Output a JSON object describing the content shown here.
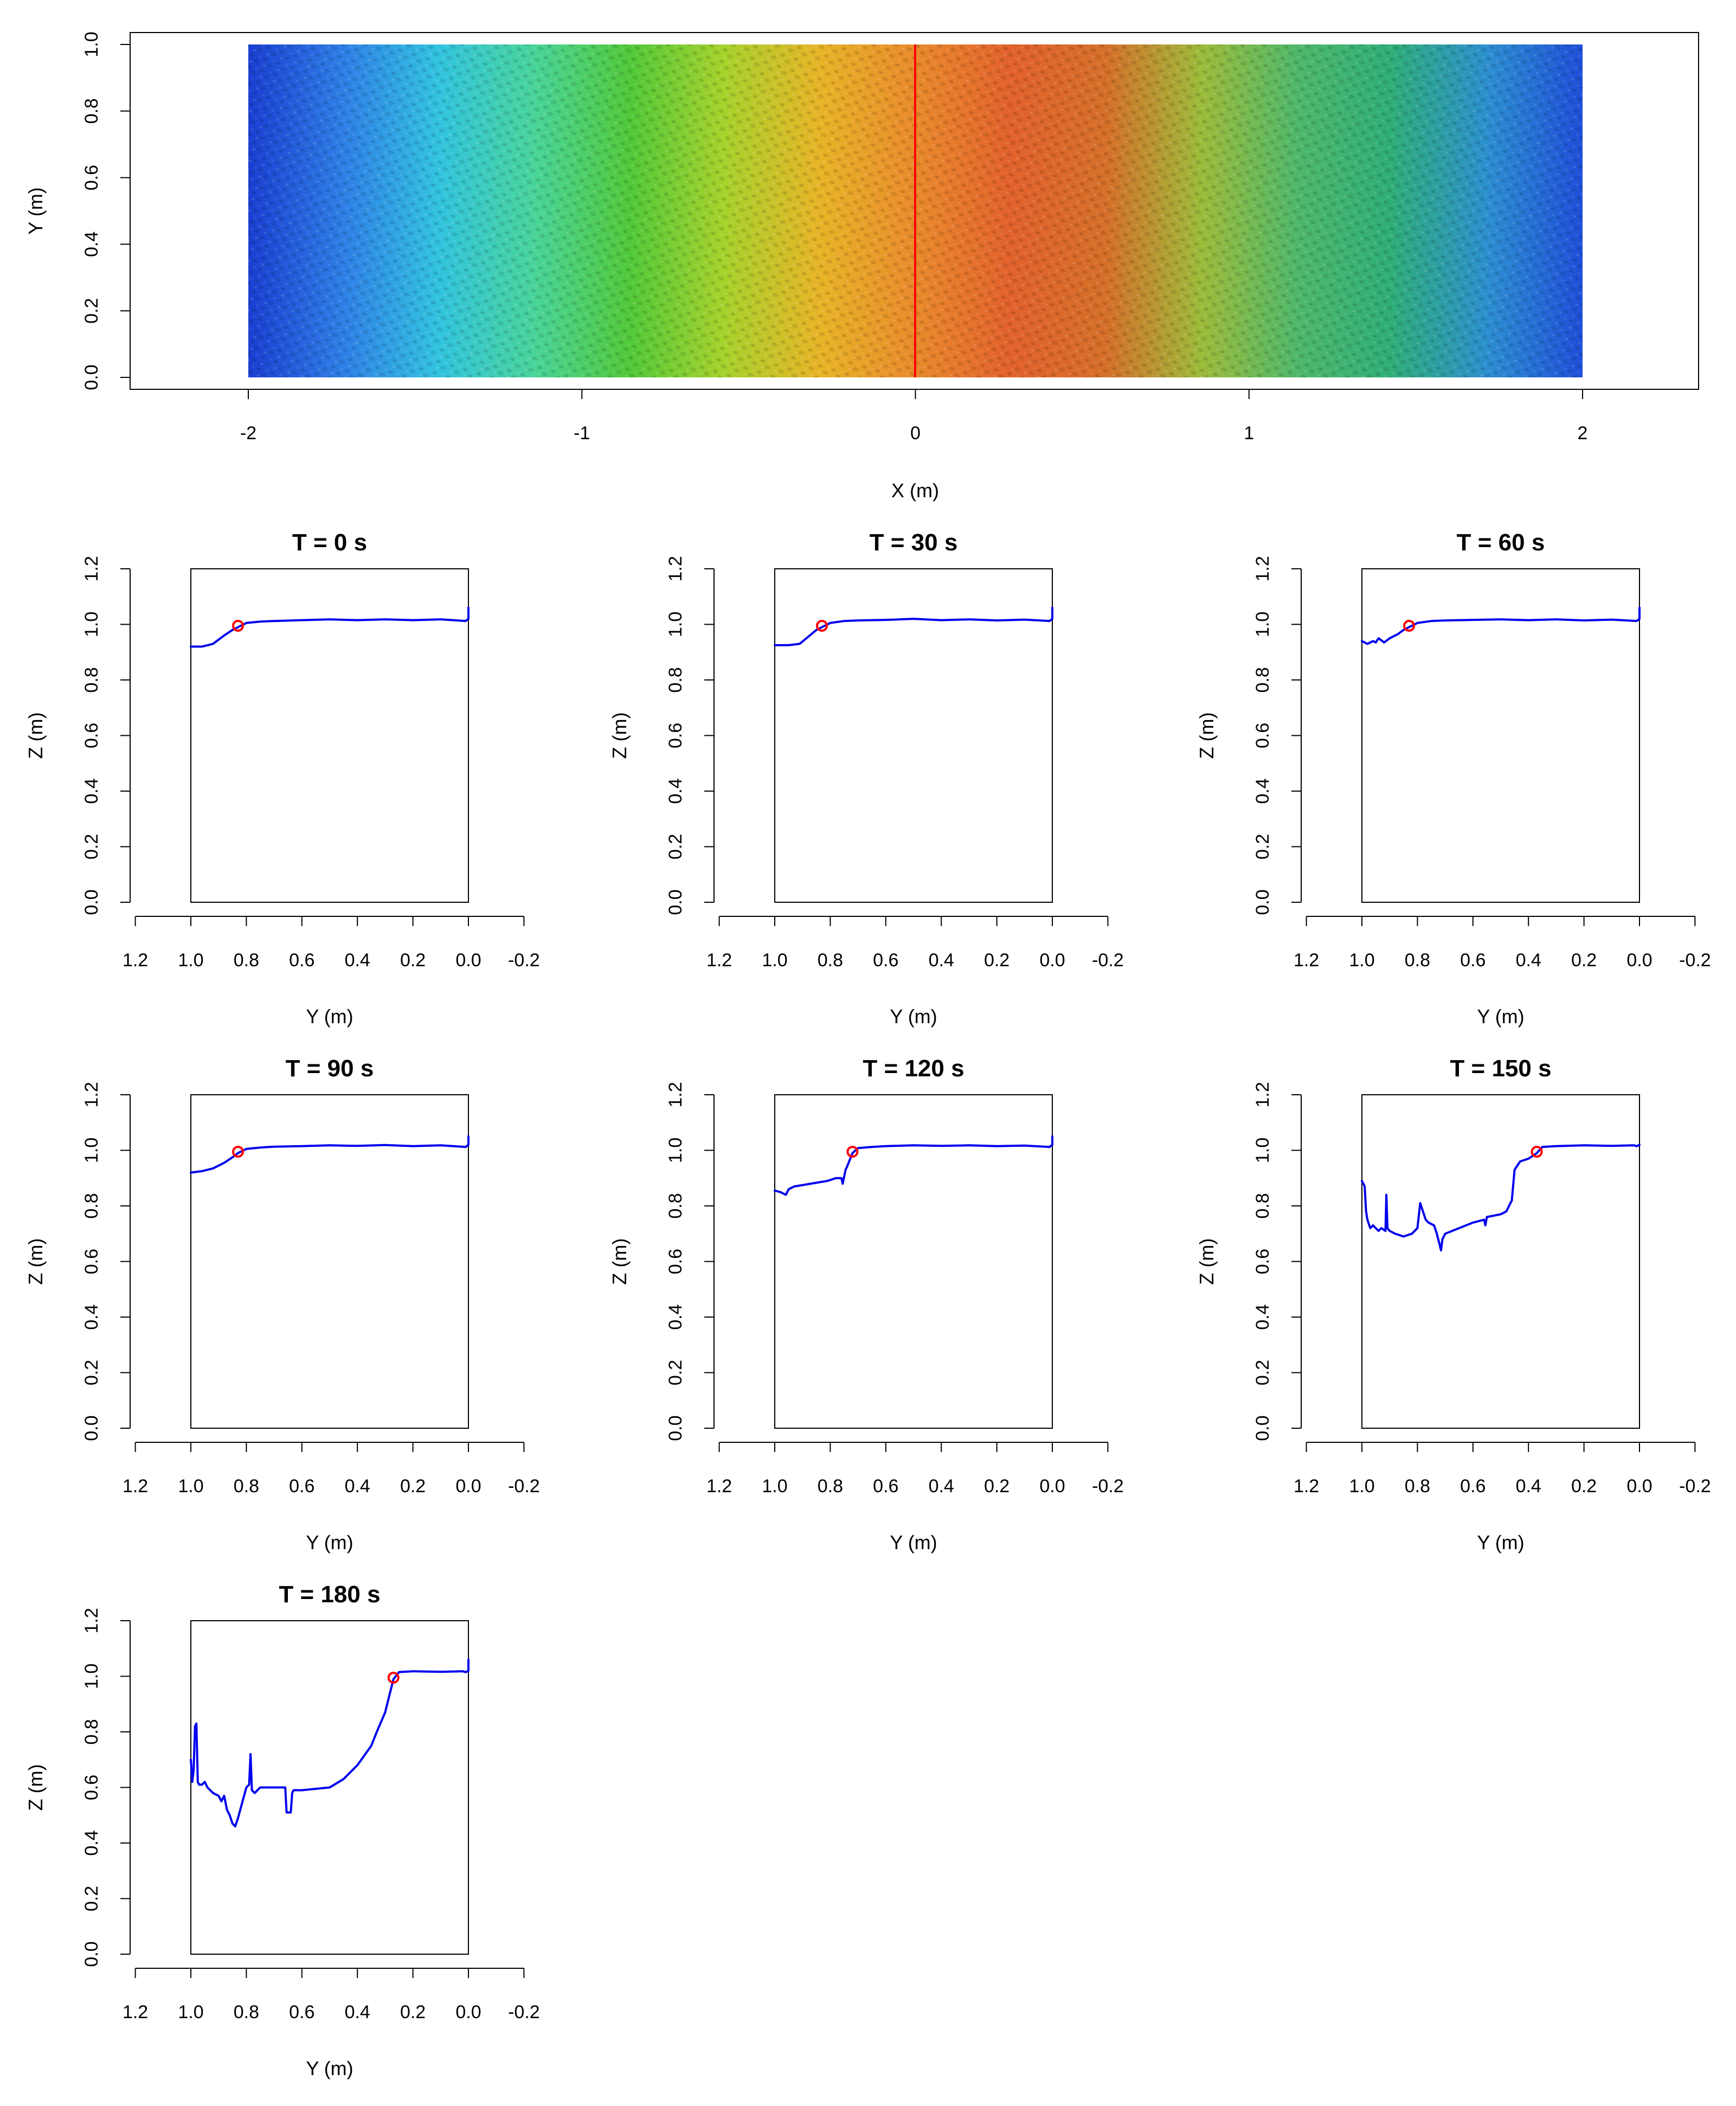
{
  "colors": {
    "profile_line": "#0000ee",
    "breach_marker": "#ff0000",
    "centerline": "#ff0000",
    "axis": "#000000",
    "dem_ramp": [
      "#1a3fd1",
      "#2f7fe6",
      "#32c4df",
      "#49d49a",
      "#52c93a",
      "#a7d22c",
      "#e8b427",
      "#e98a2c",
      "#e2622c",
      "#d5702a",
      "#9dbb3a",
      "#4fb86a",
      "#2fae78",
      "#2d8fd0",
      "#1f4fd8"
    ]
  },
  "chart_data": [
    {
      "type": "heatmap",
      "title": "",
      "xlabel": "X (m)",
      "ylabel": "Y (m)",
      "xlim": [
        -2.35,
        2.35
      ],
      "ylim": [
        -0.02,
        1.0
      ],
      "xticks": [
        -2,
        -1,
        0,
        1,
        2
      ],
      "yticks": [
        0.0,
        0.2,
        0.4,
        0.6,
        0.8,
        1.0
      ],
      "xtick_labels": [
        "-2",
        "-1",
        "0",
        "1",
        "2"
      ],
      "ytick_labels": [
        "0.0",
        "0.2",
        "0.4",
        "0.6",
        "0.8",
        "1.0"
      ],
      "extent": {
        "x": [
          -2,
          2
        ],
        "y": [
          0,
          1
        ]
      },
      "centerline_x": 0,
      "grid": false,
      "colorbar": false
    },
    {
      "type": "line",
      "title": "T = 0 s",
      "xlabel": "Y (m)",
      "ylabel": "Z (m)",
      "xlim": [
        1.2,
        -0.2
      ],
      "ylim": [
        0.0,
        1.2
      ],
      "xticks": [
        1.2,
        1.0,
        0.8,
        0.6,
        0.4,
        0.2,
        0.0,
        -0.2
      ],
      "yticks": [
        0.0,
        0.2,
        0.4,
        0.6,
        0.8,
        1.0,
        1.2
      ],
      "xtick_labels": [
        "1.2",
        "1.0",
        "0.8",
        "0.6",
        "0.4",
        "0.2",
        "0.0",
        "-0.2"
      ],
      "ytick_labels": [
        "0.0",
        "0.2",
        "0.4",
        "0.6",
        "0.8",
        "1.0",
        "1.2"
      ],
      "x": [
        1.0,
        0.96,
        0.92,
        0.88,
        0.85,
        0.83,
        0.8,
        0.75,
        0.7,
        0.6,
        0.5,
        0.4,
        0.3,
        0.2,
        0.1,
        0.01,
        0.0,
        0.0
      ],
      "y": [
        0.92,
        0.92,
        0.93,
        0.96,
        0.98,
        0.99,
        1.005,
        1.01,
        1.012,
        1.015,
        1.018,
        1.015,
        1.018,
        1.015,
        1.018,
        1.012,
        1.02,
        1.06
      ],
      "marker": {
        "x": 0.83,
        "y": 0.995
      },
      "grid": false
    },
    {
      "type": "line",
      "title": "T = 30 s",
      "xlabel": "Y (m)",
      "ylabel": "Z (m)",
      "xlim": [
        1.2,
        -0.2
      ],
      "ylim": [
        0.0,
        1.2
      ],
      "xticks": [
        1.2,
        1.0,
        0.8,
        0.6,
        0.4,
        0.2,
        0.0,
        -0.2
      ],
      "yticks": [
        0.0,
        0.2,
        0.4,
        0.6,
        0.8,
        1.0,
        1.2
      ],
      "xtick_labels": [
        "1.2",
        "1.0",
        "0.8",
        "0.6",
        "0.4",
        "0.2",
        "0.0",
        "-0.2"
      ],
      "ytick_labels": [
        "0.0",
        "0.2",
        "0.4",
        "0.6",
        "0.8",
        "1.0",
        "1.2"
      ],
      "x": [
        1.0,
        0.95,
        0.91,
        0.88,
        0.85,
        0.83,
        0.8,
        0.75,
        0.7,
        0.6,
        0.5,
        0.4,
        0.3,
        0.2,
        0.1,
        0.01,
        0.0,
        0.0
      ],
      "y": [
        0.925,
        0.925,
        0.93,
        0.955,
        0.98,
        0.99,
        1.005,
        1.012,
        1.014,
        1.016,
        1.02,
        1.015,
        1.018,
        1.014,
        1.017,
        1.012,
        1.02,
        1.06
      ],
      "marker": {
        "x": 0.83,
        "y": 0.995
      },
      "grid": false
    },
    {
      "type": "line",
      "title": "T = 60 s",
      "xlabel": "Y (m)",
      "ylabel": "Z (m)",
      "xlim": [
        1.2,
        -0.2
      ],
      "ylim": [
        0.0,
        1.2
      ],
      "xticks": [
        1.2,
        1.0,
        0.8,
        0.6,
        0.4,
        0.2,
        0.0,
        -0.2
      ],
      "yticks": [
        0.0,
        0.2,
        0.4,
        0.6,
        0.8,
        1.0,
        1.2
      ],
      "xtick_labels": [
        "1.2",
        "1.0",
        "0.8",
        "0.6",
        "0.4",
        "0.2",
        "0.0",
        "-0.2"
      ],
      "ytick_labels": [
        "0.0",
        "0.2",
        "0.4",
        "0.6",
        "0.8",
        "1.0",
        "1.2"
      ],
      "x": [
        1.0,
        0.98,
        0.96,
        0.95,
        0.94,
        0.92,
        0.9,
        0.87,
        0.85,
        0.83,
        0.8,
        0.75,
        0.7,
        0.6,
        0.5,
        0.4,
        0.3,
        0.2,
        0.1,
        0.01,
        0.0,
        0.0
      ],
      "y": [
        0.94,
        0.93,
        0.94,
        0.935,
        0.95,
        0.935,
        0.95,
        0.965,
        0.98,
        0.99,
        1.005,
        1.012,
        1.014,
        1.016,
        1.018,
        1.015,
        1.018,
        1.014,
        1.017,
        1.012,
        1.02,
        1.06
      ],
      "marker": {
        "x": 0.83,
        "y": 0.995
      },
      "grid": false
    },
    {
      "type": "line",
      "title": "T = 90 s",
      "xlabel": "Y (m)",
      "ylabel": "Z (m)",
      "xlim": [
        1.2,
        -0.2
      ],
      "ylim": [
        0.0,
        1.2
      ],
      "xticks": [
        1.2,
        1.0,
        0.8,
        0.6,
        0.4,
        0.2,
        0.0,
        -0.2
      ],
      "yticks": [
        0.0,
        0.2,
        0.4,
        0.6,
        0.8,
        1.0,
        1.2
      ],
      "xtick_labels": [
        "1.2",
        "1.0",
        "0.8",
        "0.6",
        "0.4",
        "0.2",
        "0.0",
        "-0.2"
      ],
      "ytick_labels": [
        "0.0",
        "0.2",
        "0.4",
        "0.6",
        "0.8",
        "1.0",
        "1.2"
      ],
      "x": [
        1.0,
        0.96,
        0.92,
        0.88,
        0.85,
        0.83,
        0.8,
        0.75,
        0.7,
        0.6,
        0.5,
        0.4,
        0.3,
        0.2,
        0.1,
        0.01,
        0.0,
        0.0
      ],
      "y": [
        0.92,
        0.925,
        0.935,
        0.955,
        0.975,
        0.99,
        1.005,
        1.01,
        1.013,
        1.015,
        1.018,
        1.016,
        1.019,
        1.015,
        1.018,
        1.012,
        1.02,
        1.05
      ],
      "marker": {
        "x": 0.83,
        "y": 0.995
      },
      "grid": false
    },
    {
      "type": "line",
      "title": "T = 120 s",
      "xlabel": "Y (m)",
      "ylabel": "Z (m)",
      "xlim": [
        1.2,
        -0.2
      ],
      "ylim": [
        0.0,
        1.2
      ],
      "xticks": [
        1.2,
        1.0,
        0.8,
        0.6,
        0.4,
        0.2,
        0.0,
        -0.2
      ],
      "yticks": [
        0.0,
        0.2,
        0.4,
        0.6,
        0.8,
        1.0,
        1.2
      ],
      "xtick_labels": [
        "1.2",
        "1.0",
        "0.8",
        "0.6",
        "0.4",
        "0.2",
        "0.0",
        "-0.2"
      ],
      "ytick_labels": [
        "0.0",
        "0.2",
        "0.4",
        "0.6",
        "0.8",
        "1.0",
        "1.2"
      ],
      "x": [
        1.0,
        0.98,
        0.96,
        0.95,
        0.93,
        0.9,
        0.87,
        0.84,
        0.81,
        0.78,
        0.76,
        0.755,
        0.745,
        0.74,
        0.72,
        0.7,
        0.65,
        0.6,
        0.5,
        0.4,
        0.3,
        0.2,
        0.1,
        0.01,
        0.0,
        0.0
      ],
      "y": [
        0.855,
        0.85,
        0.84,
        0.86,
        0.87,
        0.875,
        0.88,
        0.885,
        0.89,
        0.9,
        0.9,
        0.88,
        0.93,
        0.94,
        0.99,
        1.008,
        1.012,
        1.015,
        1.018,
        1.016,
        1.018,
        1.015,
        1.017,
        1.012,
        1.02,
        1.05
      ],
      "marker": {
        "x": 0.72,
        "y": 0.995
      },
      "grid": false
    },
    {
      "type": "line",
      "title": "T = 150 s",
      "xlabel": "Y (m)",
      "ylabel": "Z (m)",
      "xlim": [
        1.2,
        -0.2
      ],
      "ylim": [
        0.0,
        1.2
      ],
      "xticks": [
        1.2,
        1.0,
        0.8,
        0.6,
        0.4,
        0.2,
        0.0,
        -0.2
      ],
      "yticks": [
        0.0,
        0.2,
        0.4,
        0.6,
        0.8,
        1.0,
        1.2
      ],
      "xtick_labels": [
        "1.2",
        "1.0",
        "0.8",
        "0.6",
        "0.4",
        "0.2",
        "0.0",
        "-0.2"
      ],
      "ytick_labels": [
        "0.0",
        "0.2",
        "0.4",
        "0.6",
        "0.8",
        "1.0",
        "1.2"
      ],
      "x": [
        1.0,
        0.995,
        0.99,
        0.985,
        0.98,
        0.97,
        0.96,
        0.95,
        0.94,
        0.93,
        0.915,
        0.912,
        0.908,
        0.9,
        0.88,
        0.85,
        0.82,
        0.8,
        0.79,
        0.78,
        0.77,
        0.76,
        0.74,
        0.73,
        0.72,
        0.715,
        0.71,
        0.7,
        0.65,
        0.6,
        0.56,
        0.555,
        0.55,
        0.5,
        0.48,
        0.47,
        0.46,
        0.45,
        0.43,
        0.4,
        0.37,
        0.35,
        0.3,
        0.2,
        0.1,
        0.02,
        0.01,
        0.0
      ],
      "y": [
        0.89,
        0.88,
        0.87,
        0.78,
        0.75,
        0.72,
        0.73,
        0.72,
        0.71,
        0.72,
        0.71,
        0.84,
        0.72,
        0.71,
        0.7,
        0.69,
        0.7,
        0.72,
        0.81,
        0.78,
        0.75,
        0.74,
        0.73,
        0.7,
        0.66,
        0.64,
        0.68,
        0.7,
        0.72,
        0.74,
        0.75,
        0.73,
        0.76,
        0.77,
        0.78,
        0.8,
        0.82,
        0.93,
        0.96,
        0.97,
        0.99,
        1.012,
        1.015,
        1.018,
        1.016,
        1.018,
        1.015,
        1.02
      ],
      "marker": {
        "x": 0.37,
        "y": 0.995
      },
      "grid": false
    },
    {
      "type": "line",
      "title": "T = 180 s",
      "xlabel": "Y (m)",
      "ylabel": "Z (m)",
      "xlim": [
        1.2,
        -0.2
      ],
      "ylim": [
        0.0,
        1.2
      ],
      "xticks": [
        1.2,
        1.0,
        0.8,
        0.6,
        0.4,
        0.2,
        0.0,
        -0.2
      ],
      "yticks": [
        0.0,
        0.2,
        0.4,
        0.6,
        0.8,
        1.0,
        1.2
      ],
      "xtick_labels": [
        "1.2",
        "1.0",
        "0.8",
        "0.6",
        "0.4",
        "0.2",
        "0.0",
        "-0.2"
      ],
      "ytick_labels": [
        "0.0",
        "0.2",
        "0.4",
        "0.6",
        "0.8",
        "1.0",
        "1.2"
      ],
      "x": [
        1.0,
        0.995,
        0.99,
        0.985,
        0.98,
        0.975,
        0.97,
        0.96,
        0.95,
        0.94,
        0.92,
        0.9,
        0.89,
        0.88,
        0.87,
        0.86,
        0.85,
        0.84,
        0.83,
        0.8,
        0.79,
        0.785,
        0.78,
        0.77,
        0.75,
        0.7,
        0.66,
        0.655,
        0.64,
        0.635,
        0.63,
        0.6,
        0.5,
        0.45,
        0.4,
        0.35,
        0.33,
        0.3,
        0.28,
        0.27,
        0.25,
        0.2,
        0.1,
        0.02,
        0.01,
        0.0,
        0.0
      ],
      "y": [
        0.7,
        0.62,
        0.66,
        0.82,
        0.83,
        0.62,
        0.61,
        0.61,
        0.62,
        0.6,
        0.58,
        0.57,
        0.55,
        0.57,
        0.52,
        0.5,
        0.47,
        0.46,
        0.49,
        0.6,
        0.61,
        0.72,
        0.59,
        0.58,
        0.6,
        0.6,
        0.6,
        0.51,
        0.51,
        0.58,
        0.59,
        0.59,
        0.6,
        0.63,
        0.68,
        0.75,
        0.8,
        0.87,
        0.95,
        0.99,
        1.015,
        1.018,
        1.016,
        1.018,
        1.015,
        1.02,
        1.06
      ],
      "marker": {
        "x": 0.27,
        "y": 0.995
      },
      "grid": false
    }
  ]
}
